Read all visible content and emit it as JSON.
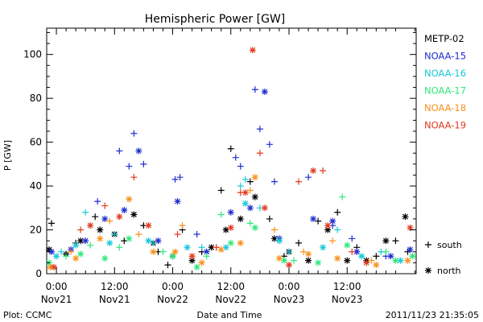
{
  "chart_data": {
    "type": "scatter",
    "title": "Hemispheric Power [GW]",
    "xlabel": "Date and Time",
    "ylabel": "P [GW]",
    "ylim": [
      0,
      112
    ],
    "xlim": [
      "2011-11-20T22:00",
      "2011-11-24T02:15"
    ],
    "y_ticks": [
      0,
      20,
      40,
      60,
      80,
      100
    ],
    "x_ticks": [
      {
        "time": "2011-11-21T00:00",
        "label": "0:00",
        "sublabel": "Nov21"
      },
      {
        "time": "2011-11-21T12:00",
        "label": "12:00",
        "sublabel": "Nov21"
      },
      {
        "time": "2011-11-22T00:00",
        "label": "0:00",
        "sublabel": "Nov22"
      },
      {
        "time": "2011-11-22T12:00",
        "label": "12:00",
        "sublabel": "Nov22"
      },
      {
        "time": "2011-11-23T00:00",
        "label": "0:00",
        "sublabel": "Nov23"
      },
      {
        "time": "2011-11-23T12:00",
        "label": "12:00",
        "sublabel": "Nov23"
      }
    ],
    "marker_legend": [
      {
        "symbol": "+",
        "label": "south"
      },
      {
        "symbol": "*",
        "label": "north"
      }
    ],
    "series": [
      {
        "name": "METP-02",
        "color": "#000000",
        "south": [
          [
            "2011-11-20T23:00",
            23
          ],
          [
            "2011-11-21T04:00",
            14
          ],
          [
            "2011-11-21T08:00",
            26
          ],
          [
            "2011-11-21T14:00",
            15
          ],
          [
            "2011-11-21T18:00",
            22
          ],
          [
            "2011-11-21T21:00",
            10
          ],
          [
            "2011-11-21T23:00",
            4
          ],
          [
            "2011-11-22T02:00",
            20
          ],
          [
            "2011-11-22T06:00",
            10
          ],
          [
            "2011-11-22T10:00",
            38
          ],
          [
            "2011-11-22T12:00",
            57
          ],
          [
            "2011-11-22T16:00",
            42
          ],
          [
            "2011-11-22T20:00",
            25
          ],
          [
            "2011-11-22T23:00",
            8
          ],
          [
            "2011-11-23T02:00",
            14
          ],
          [
            "2011-11-23T06:00",
            24
          ],
          [
            "2011-11-23T10:00",
            28
          ],
          [
            "2011-11-23T14:00",
            12
          ],
          [
            "2011-11-23T18:00",
            8
          ],
          [
            "2011-11-23T22:00",
            15
          ],
          [
            "2011-11-24T00:30",
            10
          ]
        ],
        "north": [
          [
            "2011-11-20T22:30",
            11
          ],
          [
            "2011-11-21T02:00",
            9
          ],
          [
            "2011-11-21T05:00",
            15
          ],
          [
            "2011-11-21T09:00",
            20
          ],
          [
            "2011-11-21T12:00",
            18
          ],
          [
            "2011-11-21T16:00",
            27
          ],
          [
            "2011-11-21T20:00",
            14
          ],
          [
            "2011-11-22T00:00",
            8
          ],
          [
            "2011-11-22T04:00",
            6
          ],
          [
            "2011-11-22T08:00",
            12
          ],
          [
            "2011-11-22T11:00",
            20
          ],
          [
            "2011-11-22T14:00",
            25
          ],
          [
            "2011-11-22T17:00",
            35
          ],
          [
            "2011-11-22T21:00",
            16
          ],
          [
            "2011-11-23T00:00",
            10
          ],
          [
            "2011-11-23T04:00",
            6
          ],
          [
            "2011-11-23T08:00",
            20
          ],
          [
            "2011-11-23T12:00",
            6
          ],
          [
            "2011-11-23T16:00",
            6
          ],
          [
            "2011-11-23T20:00",
            15
          ],
          [
            "2011-11-24T00:00",
            26
          ]
        ]
      },
      {
        "name": "NOAA-15",
        "color": "#1f2fd0",
        "south": [
          [
            "2011-11-21T08:30",
            33
          ],
          [
            "2011-11-21T13:00",
            56
          ],
          [
            "2011-11-21T15:00",
            49
          ],
          [
            "2011-11-21T16:00",
            64
          ],
          [
            "2011-11-21T18:00",
            50
          ],
          [
            "2011-11-22T00:30",
            43
          ],
          [
            "2011-11-22T01:30",
            44
          ],
          [
            "2011-11-22T05:00",
            18
          ],
          [
            "2011-11-22T13:00",
            53
          ],
          [
            "2011-11-22T14:00",
            49
          ],
          [
            "2011-11-22T17:00",
            84
          ],
          [
            "2011-11-22T18:00",
            66
          ],
          [
            "2011-11-22T20:00",
            59
          ],
          [
            "2011-11-22T21:00",
            42
          ],
          [
            "2011-11-23T04:00",
            44
          ],
          [
            "2011-11-23T09:00",
            22
          ],
          [
            "2011-11-23T13:00",
            16
          ],
          [
            "2011-11-23T20:00",
            8
          ]
        ],
        "north": [
          [
            "2011-11-20T23:00",
            10
          ],
          [
            "2011-11-21T03:00",
            11
          ],
          [
            "2011-11-21T06:00",
            15
          ],
          [
            "2011-11-21T10:00",
            25
          ],
          [
            "2011-11-21T14:00",
            29
          ],
          [
            "2011-11-21T17:00",
            56
          ],
          [
            "2011-11-21T21:00",
            15
          ],
          [
            "2011-11-22T01:00",
            33
          ],
          [
            "2011-11-22T07:00",
            10
          ],
          [
            "2011-11-22T12:00",
            28
          ],
          [
            "2011-11-22T16:00",
            30
          ],
          [
            "2011-11-22T19:00",
            83
          ],
          [
            "2011-11-22T22:00",
            16
          ],
          [
            "2011-11-23T05:00",
            25
          ],
          [
            "2011-11-23T09:00",
            24
          ],
          [
            "2011-11-23T14:00",
            10
          ],
          [
            "2011-11-23T21:00",
            8
          ],
          [
            "2011-11-24T01:00",
            11
          ]
        ]
      },
      {
        "name": "NOAA-16",
        "color": "#18c8d8",
        "south": [
          [
            "2011-11-21T01:00",
            10
          ],
          [
            "2011-11-21T06:00",
            28
          ],
          [
            "2011-11-21T12:00",
            18
          ],
          [
            "2011-11-21T20:00",
            14
          ],
          [
            "2011-11-22T06:00",
            12
          ],
          [
            "2011-11-22T14:00",
            40
          ],
          [
            "2011-11-22T15:00",
            43
          ],
          [
            "2011-11-22T18:00",
            30
          ],
          [
            "2011-11-23T00:00",
            10
          ],
          [
            "2011-11-23T10:00",
            20
          ],
          [
            "2011-11-23T19:00",
            10
          ]
        ],
        "north": [
          [
            "2011-11-21T00:00",
            8
          ],
          [
            "2011-11-21T04:00",
            13
          ],
          [
            "2011-11-21T11:00",
            14
          ],
          [
            "2011-11-21T19:00",
            15
          ],
          [
            "2011-11-22T03:00",
            12
          ],
          [
            "2011-11-22T11:00",
            12
          ],
          [
            "2011-11-22T15:00",
            32
          ],
          [
            "2011-11-22T22:00",
            15
          ],
          [
            "2011-11-23T07:00",
            12
          ],
          [
            "2011-11-23T15:00",
            8
          ],
          [
            "2011-11-23T23:00",
            6
          ]
        ]
      },
      {
        "name": "NOAA-17",
        "color": "#2ee87a",
        "south": [
          [
            "2011-11-21T02:00",
            8
          ],
          [
            "2011-11-21T07:00",
            13
          ],
          [
            "2011-11-21T13:00",
            12
          ],
          [
            "2011-11-21T22:00",
            10
          ],
          [
            "2011-11-22T07:00",
            8
          ],
          [
            "2011-11-22T10:00",
            27
          ],
          [
            "2011-11-22T16:00",
            23
          ],
          [
            "2011-11-23T01:00",
            6
          ],
          [
            "2011-11-23T11:00",
            35
          ],
          [
            "2011-11-23T20:00",
            10
          ]
        ],
        "north": [
          [
            "2011-11-20T22:30",
            5
          ],
          [
            "2011-11-21T05:00",
            9
          ],
          [
            "2011-11-21T10:00",
            7
          ],
          [
            "2011-11-21T15:00",
            16
          ],
          [
            "2011-11-22T00:00",
            8
          ],
          [
            "2011-11-22T05:00",
            3
          ],
          [
            "2011-11-22T12:00",
            14
          ],
          [
            "2011-11-22T17:00",
            21
          ],
          [
            "2011-11-22T23:00",
            6
          ],
          [
            "2011-11-23T06:00",
            5
          ],
          [
            "2011-11-23T12:00",
            13
          ],
          [
            "2011-11-23T22:00",
            6
          ],
          [
            "2011-11-24T01:30",
            8
          ]
        ]
      },
      {
        "name": "NOAA-18",
        "color": "#f7921e",
        "south": [
          [
            "2011-11-21T03:00",
            10
          ],
          [
            "2011-11-21T11:00",
            24
          ],
          [
            "2011-11-21T17:00",
            18
          ],
          [
            "2011-11-22T02:00",
            22
          ],
          [
            "2011-11-22T09:00",
            12
          ],
          [
            "2011-11-22T16:00",
            38
          ],
          [
            "2011-11-22T21:00",
            20
          ],
          [
            "2011-11-23T03:00",
            10
          ],
          [
            "2011-11-23T09:00",
            15
          ],
          [
            "2011-11-23T17:00",
            6
          ]
        ],
        "north": [
          [
            "2011-11-20T22:45",
            3
          ],
          [
            "2011-11-21T04:00",
            7
          ],
          [
            "2011-11-21T09:00",
            16
          ],
          [
            "2011-11-21T15:00",
            34
          ],
          [
            "2011-11-21T20:00",
            10
          ],
          [
            "2011-11-22T00:30",
            10
          ],
          [
            "2011-11-22T06:00",
            5
          ],
          [
            "2011-11-22T10:00",
            11
          ],
          [
            "2011-11-22T14:00",
            14
          ],
          [
            "2011-11-22T17:00",
            44
          ],
          [
            "2011-11-22T22:00",
            7
          ],
          [
            "2011-11-23T04:00",
            9
          ],
          [
            "2011-11-23T10:00",
            7
          ],
          [
            "2011-11-23T18:00",
            4
          ],
          [
            "2011-11-24T00:30",
            6
          ]
        ]
      },
      {
        "name": "NOAA-19",
        "color": "#e23a1e",
        "south": [
          [
            "2011-11-21T05:00",
            20
          ],
          [
            "2011-11-21T10:00",
            31
          ],
          [
            "2011-11-21T16:00",
            44
          ],
          [
            "2011-11-22T01:00",
            18
          ],
          [
            "2011-11-22T09:00",
            12
          ],
          [
            "2011-11-22T14:00",
            37
          ],
          [
            "2011-11-22T18:00",
            55
          ],
          [
            "2011-11-23T02:00",
            42
          ],
          [
            "2011-11-23T07:00",
            47
          ],
          [
            "2011-11-23T13:00",
            10
          ]
        ],
        "north": [
          [
            "2011-11-20T23:30",
            3
          ],
          [
            "2011-11-21T07:00",
            22
          ],
          [
            "2011-11-21T13:00",
            26
          ],
          [
            "2011-11-21T19:00",
            22
          ],
          [
            "2011-11-22T04:00",
            8
          ],
          [
            "2011-11-22T12:00",
            21
          ],
          [
            "2011-11-22T15:00",
            37
          ],
          [
            "2011-11-22T16:30",
            102
          ],
          [
            "2011-11-22T19:00",
            30
          ],
          [
            "2011-11-23T00:00",
            4
          ],
          [
            "2011-11-23T05:00",
            47
          ],
          [
            "2011-11-23T08:00",
            22
          ],
          [
            "2011-11-23T16:00",
            5
          ],
          [
            "2011-11-24T01:00",
            21
          ]
        ]
      }
    ]
  },
  "footer": {
    "left": "Plot: CCMC",
    "right": "2011/11/23 21:35:05"
  }
}
